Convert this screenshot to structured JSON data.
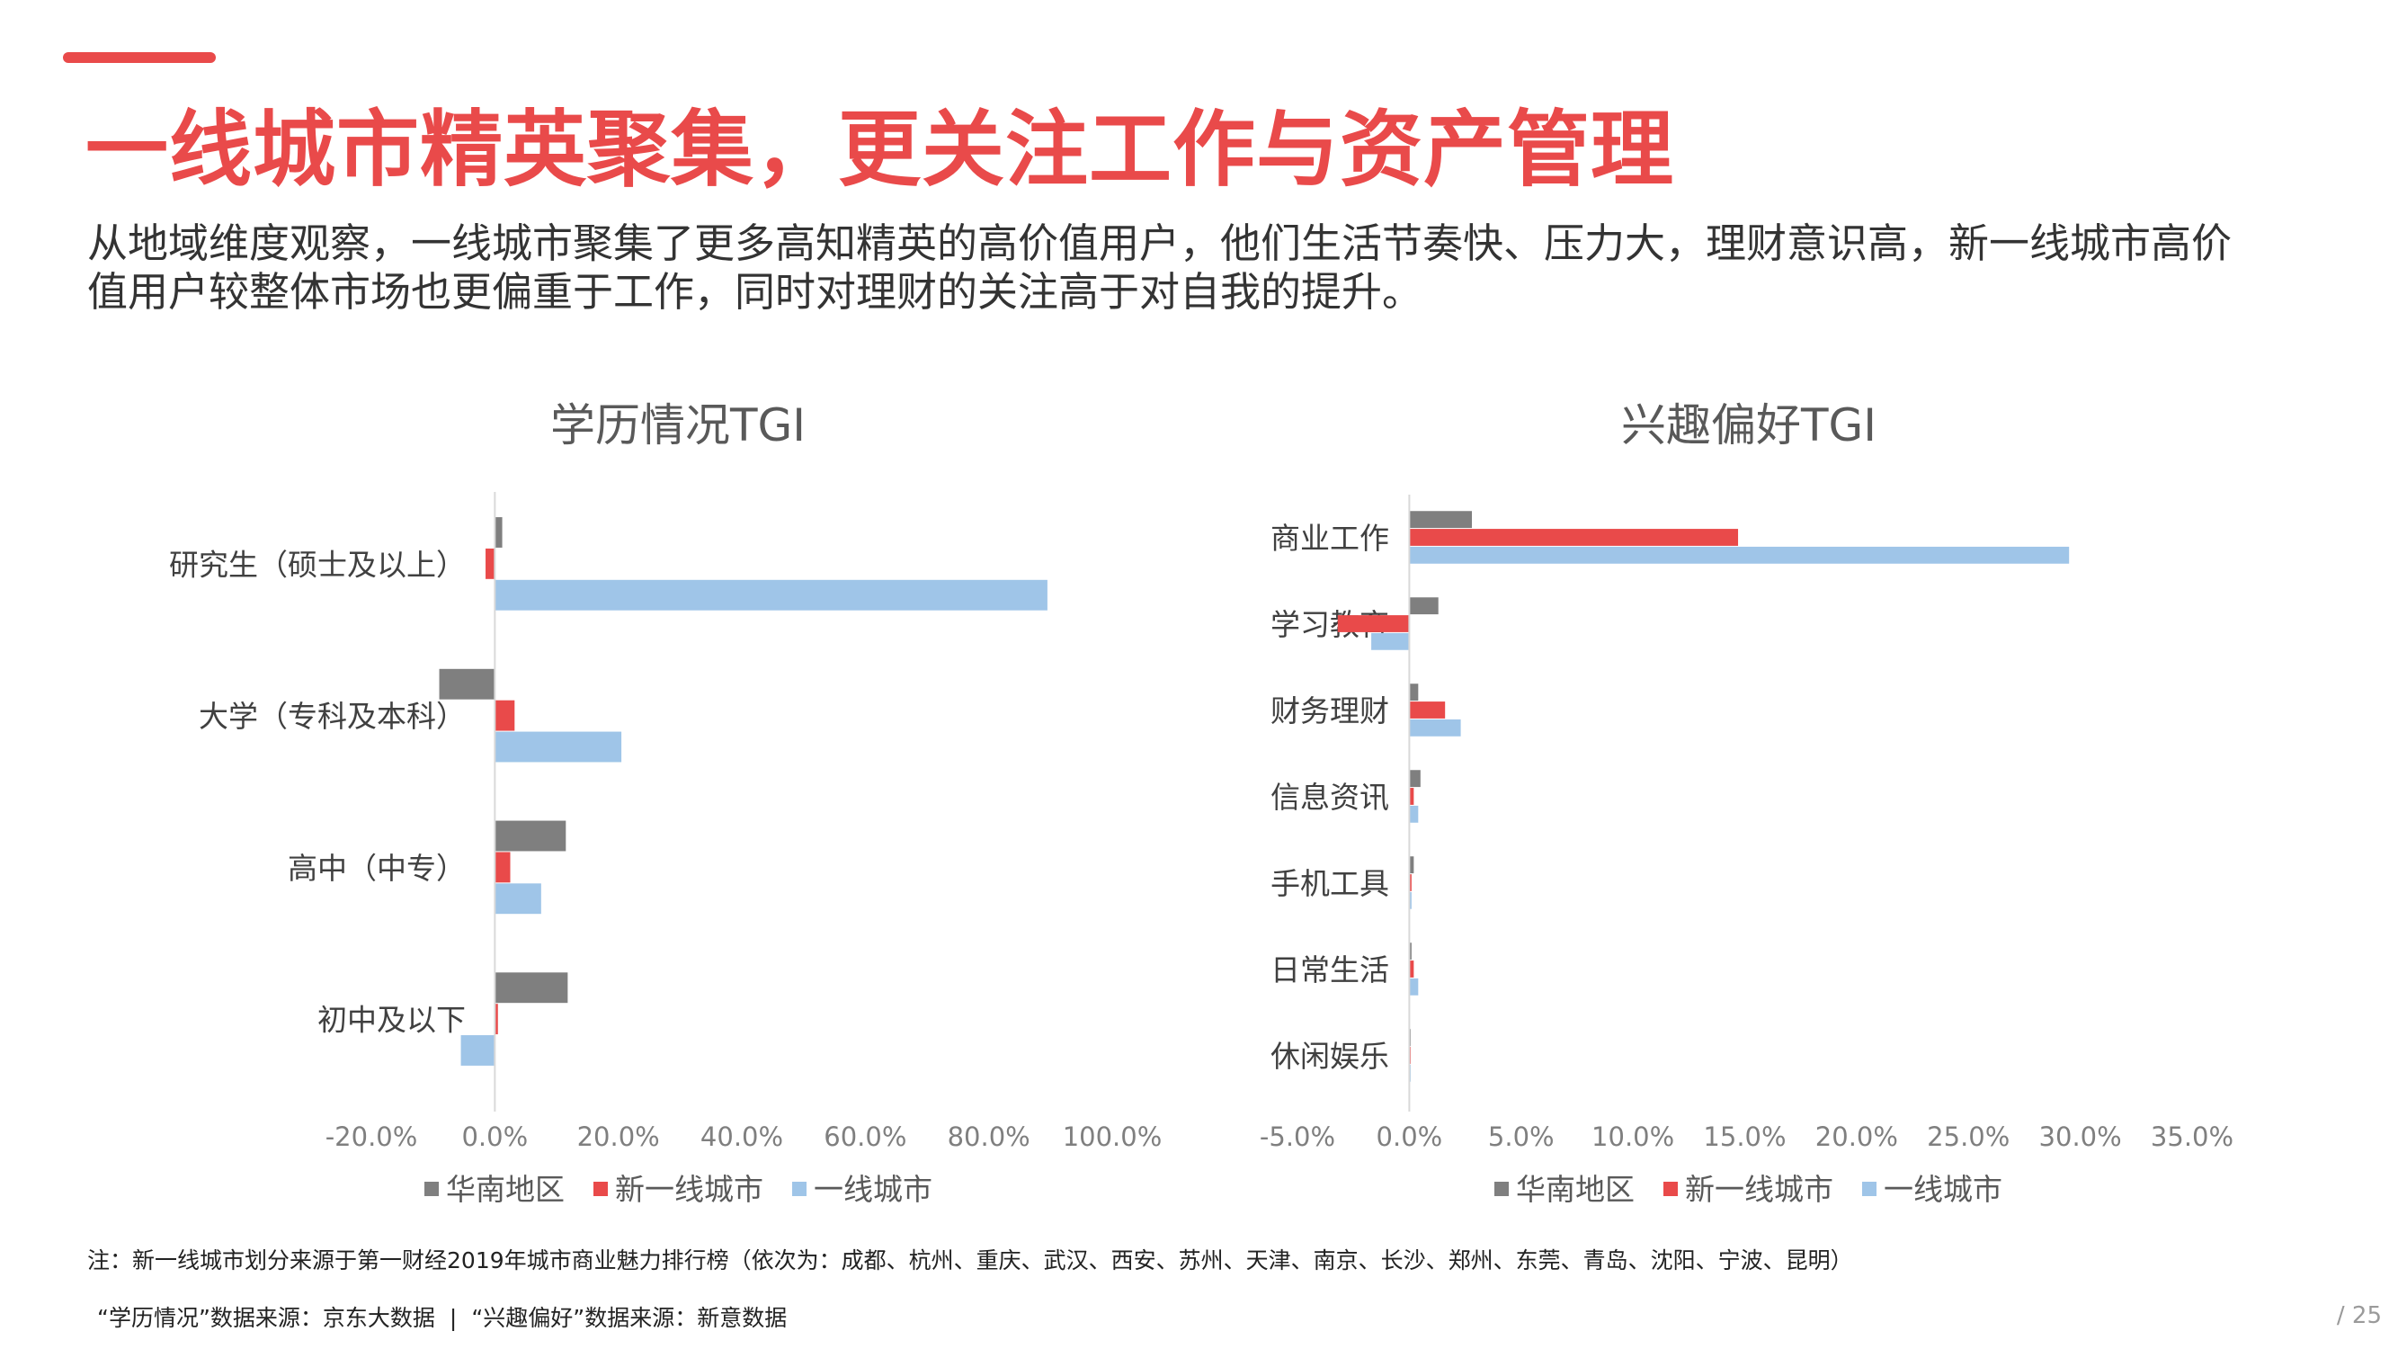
{
  "header": {
    "title": "一线城市精英聚集，更关注工作与资产管理",
    "description": "从地域维度观察，一线城市聚集了更多高知精英的高价值用户，他们生活节奏快、压力大，理财意识高，新一线城市高价值用户较整体市场也更偏重于工作，同时对理财的关注高于对自我的提升。"
  },
  "colors": {
    "accent": "#e94a4a",
    "series": [
      "#7f7f7f",
      "#e94a4a",
      "#9fc5e8"
    ]
  },
  "chart_data": [
    {
      "type": "bar",
      "orientation": "horizontal",
      "title": "学历情况TGI",
      "categories": [
        "研究生（硕士及以上）",
        "大学（专科及本科）",
        "高中（中专）",
        "初中及以下"
      ],
      "series": [
        {
          "name": "华南地区",
          "values": [
            1.2,
            -9.0,
            11.5,
            11.8
          ]
        },
        {
          "name": "新一线城市",
          "values": [
            -1.5,
            3.2,
            2.5,
            0.5
          ]
        },
        {
          "name": "一线城市",
          "values": [
            89.5,
            20.5,
            7.5,
            -5.5
          ]
        }
      ],
      "xlim": [
        -20,
        100
      ],
      "xticks": [
        "-20.0%",
        "0.0%",
        "20.0%",
        "40.0%",
        "60.0%",
        "80.0%",
        "100.0%"
      ],
      "legend": "bottom",
      "grid": false
    },
    {
      "type": "bar",
      "orientation": "horizontal",
      "title": "兴趣偏好TGI",
      "categories": [
        "商业工作",
        "学习教育",
        "财务理财",
        "信息资讯",
        "手机工具",
        "日常生活",
        "休闲娱乐"
      ],
      "series": [
        {
          "name": "华南地区",
          "values": [
            2.8,
            1.3,
            0.4,
            0.5,
            0.2,
            0.1,
            0.0
          ]
        },
        {
          "name": "新一线城市",
          "values": [
            14.7,
            -3.2,
            1.6,
            0.2,
            0.1,
            0.2,
            0.0
          ]
        },
        {
          "name": "一线城市",
          "values": [
            29.5,
            -1.7,
            2.3,
            0.4,
            0.1,
            0.4,
            0.0
          ]
        }
      ],
      "xlim": [
        -5,
        35
      ],
      "xticks": [
        "-5.0%",
        "0.0%",
        "5.0%",
        "10.0%",
        "15.0%",
        "20.0%",
        "25.0%",
        "30.0%",
        "35.0%"
      ],
      "legend": "bottom",
      "grid": false
    }
  ],
  "footer": {
    "note": "注：新一线城市划分来源于第一财经2019年城市商业魅力排行榜（依次为：成都、杭州、重庆、武汉、西安、苏州、天津、南京、长沙、郑州、东莞、青岛、沈阳、宁波、昆明）",
    "source_education": "“学历情况”数据来源：京东大数据",
    "separator": "|",
    "source_interest": "“兴趣偏好”数据来源：新意数据",
    "page_number": "/ 25"
  }
}
